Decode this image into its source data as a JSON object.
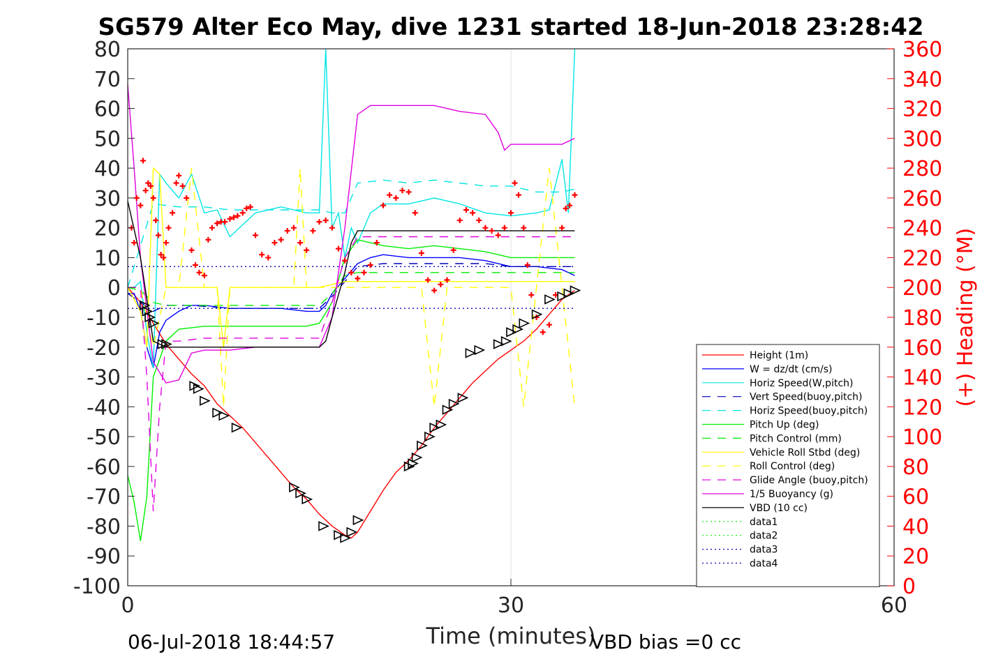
{
  "title": "SG579 Alter Eco May, dive 1231 started 18-Jun-2018 23:28:42",
  "footer": {
    "date": "06-Jul-2018 18:44:57",
    "xlabel": "Time (minutes)",
    "vbd_bias": "VBD bias =0 cc"
  },
  "chart_data": {
    "type": "line",
    "xlim": [
      0,
      60
    ],
    "ylim": [
      -100,
      80
    ],
    "y2lim": [
      0,
      360
    ],
    "ylabel_right": "(+) Heading (°M)",
    "xticks": [
      "0",
      "30",
      "60"
    ],
    "yticks": [
      "80",
      "70",
      "60",
      "50",
      "40",
      "30",
      "20",
      "10",
      "0",
      "-10",
      "-20",
      "-30",
      "-40",
      "-50",
      "-60",
      "-70",
      "-80",
      "-90",
      "-100"
    ],
    "y2ticks": [
      "360",
      "340",
      "320",
      "300",
      "280",
      "260",
      "240",
      "220",
      "200",
      "180",
      "160",
      "140",
      "120",
      "100",
      "80",
      "60",
      "40",
      "20",
      "0"
    ],
    "grid": "x only",
    "legend_position": "lower right",
    "series": [
      {
        "name": "Height (1m)",
        "color": "#ff0000",
        "dash": "solid",
        "x": [
          0,
          1,
          2,
          3,
          4,
          5,
          6,
          7,
          8,
          9,
          10,
          11,
          12,
          13,
          14,
          15,
          16,
          17,
          17.5,
          18,
          19,
          20,
          21,
          22,
          23,
          24,
          25,
          26,
          27,
          28,
          29,
          30,
          31,
          32,
          33,
          34,
          35
        ],
        "y": [
          0,
          -5,
          -12,
          -19,
          -24,
          -29,
          -33,
          -39,
          -43,
          -47,
          -52,
          -57,
          -62,
          -67,
          -71,
          -76,
          -80,
          -83,
          -84,
          -82,
          -75,
          -68,
          -62,
          -58,
          -53,
          -47,
          -42,
          -37,
          -32,
          -28,
          -24,
          -21,
          -18,
          -14,
          -9,
          -4,
          -1
        ]
      },
      {
        "name": "W = dz/dt (cm/s)",
        "color": "#0000ff",
        "dash": "solid",
        "x": [
          0,
          0.5,
          1,
          1.5,
          2,
          2.5,
          3,
          4,
          5,
          6,
          8,
          10,
          12,
          14,
          15,
          15.5,
          16,
          17,
          18,
          19,
          20,
          22,
          24,
          26,
          28,
          30,
          32,
          34,
          35
        ],
        "y": [
          -2,
          -2,
          -8,
          -20,
          -27,
          -15,
          -11,
          -8,
          -6,
          -6,
          -7,
          -7,
          -7,
          -8,
          -8,
          -6,
          -2,
          3,
          8,
          10,
          11,
          10,
          10,
          10,
          9,
          7,
          7,
          6,
          4
        ]
      },
      {
        "name": "Horiz Speed(W,pitch)",
        "color": "#00e5e5",
        "dash": "solid",
        "x": [
          0,
          0.5,
          1,
          1.5,
          2,
          2.5,
          3,
          4,
          5,
          6,
          7,
          8,
          10,
          12,
          14,
          15,
          15.5,
          16,
          16.5,
          17,
          17.5,
          18,
          19,
          20,
          22,
          24,
          26,
          28,
          30,
          32,
          33,
          34,
          34.5,
          35
        ],
        "y": [
          0,
          0,
          2,
          -15,
          -27,
          38,
          35,
          30,
          38,
          25,
          26,
          17,
          25,
          27,
          25,
          25,
          80,
          20,
          25,
          10,
          20,
          15,
          25,
          28,
          28,
          30,
          28,
          25,
          24,
          25,
          26,
          43,
          25,
          80
        ]
      },
      {
        "name": "Vert Speed(buoy,pitch)",
        "color": "#0000bb",
        "dash": "12,10",
        "x": [
          0,
          1,
          2,
          3,
          5,
          8,
          11,
          14,
          15,
          16,
          17,
          18,
          20,
          22,
          24,
          26,
          28,
          30,
          32,
          34,
          35
        ],
        "y": [
          -2,
          -5,
          -8,
          -6,
          -6,
          -7,
          -7,
          -7,
          -7,
          -3,
          2,
          7,
          8,
          8,
          8,
          8,
          8,
          7,
          7,
          7,
          7
        ]
      },
      {
        "name": "Horiz Speed(buoy,pitch)",
        "color": "#00e5e5",
        "dash": "12,10",
        "x": [
          0,
          2,
          4,
          6,
          8,
          10,
          12,
          14,
          15,
          16,
          17,
          18,
          20,
          22,
          24,
          26,
          28,
          30,
          32,
          34,
          35
        ],
        "y": [
          0,
          28,
          27,
          27,
          26,
          26,
          26,
          26,
          26,
          25,
          25,
          35,
          36,
          35,
          36,
          35,
          34,
          34,
          32,
          32,
          33
        ]
      },
      {
        "name": "Pitch Up (deg)",
        "color": "#00ee00",
        "dash": "solid",
        "x": [
          0,
          0.5,
          1,
          1.5,
          2,
          3,
          4,
          6,
          8,
          10,
          12,
          14,
          15,
          16,
          17,
          18,
          19,
          20,
          22,
          24,
          26,
          28,
          30,
          32,
          34,
          35
        ],
        "y": [
          -63,
          -72,
          -85,
          -70,
          -30,
          -18,
          -14,
          -13,
          -13,
          -13,
          -13,
          -13,
          -12,
          -5,
          10,
          16,
          15,
          14,
          13,
          14,
          13,
          12,
          10,
          10,
          10,
          10
        ]
      },
      {
        "name": "Pitch Control (mm)",
        "color": "#00ee00",
        "dash": "12,10",
        "x": [
          0,
          1,
          2,
          3,
          6,
          10,
          14,
          15,
          16,
          17,
          18,
          20,
          24,
          28,
          32,
          35
        ],
        "y": [
          0,
          -1,
          -5,
          -6,
          -6,
          -6,
          -6,
          -6,
          -2,
          4,
          5,
          5,
          5,
          5,
          5,
          5
        ]
      },
      {
        "name": "Vehicle Roll Stbd (deg)",
        "color": "#ffff00",
        "dash": "solid",
        "x": [
          0,
          1,
          1.5,
          2,
          2.5,
          3,
          4,
          5,
          6,
          7,
          7.5,
          8,
          9,
          10,
          12,
          14,
          15,
          16,
          17,
          18,
          20,
          22,
          24,
          25,
          26,
          28,
          30,
          32,
          33,
          34,
          35
        ],
        "y": [
          0,
          -8,
          -20,
          40,
          38,
          0,
          0,
          0,
          0,
          0,
          -20,
          0,
          0,
          0,
          0,
          0,
          0,
          1,
          2,
          2,
          2,
          2,
          2,
          2,
          2,
          2,
          2,
          2,
          2,
          2,
          2
        ]
      },
      {
        "name": "Roll Control (deg)",
        "color": "#ffff00",
        "dash": "12,10",
        "x": [
          0,
          1,
          2,
          3,
          4,
          5,
          6,
          7,
          7.5,
          8,
          9,
          10,
          13,
          13.5,
          14,
          15,
          16,
          18,
          20,
          22,
          23,
          24,
          25,
          26,
          28,
          30,
          31,
          32,
          33,
          34,
          35
        ],
        "y": [
          0,
          0,
          -20,
          0,
          0,
          40,
          0,
          0,
          -40,
          0,
          0,
          0,
          0,
          40,
          0,
          0,
          0,
          0,
          0,
          0,
          0,
          -40,
          0,
          0,
          0,
          0,
          -40,
          0,
          40,
          0,
          -40
        ]
      },
      {
        "name": "Glide Angle (buoy,pitch)",
        "color": "#e000e0",
        "dash": "12,10",
        "x": [
          0,
          1,
          1.5,
          2,
          2.5,
          3,
          4,
          6,
          8,
          10,
          12,
          14,
          15,
          16,
          17,
          18,
          20,
          22,
          24,
          26,
          28,
          30,
          32,
          34,
          35
        ],
        "y": [
          0,
          0,
          -30,
          -75,
          -40,
          -18,
          -18,
          -17,
          -17,
          -17,
          -17,
          -17,
          -17,
          -5,
          10,
          17,
          17,
          17,
          17,
          17,
          17,
          17,
          17,
          17,
          17
        ]
      },
      {
        "name": "1/5 Buoyancy (g)",
        "color": "#e000e0",
        "dash": "solid",
        "x": [
          0,
          0.5,
          1,
          2,
          3,
          4,
          5,
          6,
          8,
          10,
          12,
          14,
          15,
          16,
          17,
          18,
          19,
          20,
          22,
          24,
          25,
          26,
          28,
          29,
          29.5,
          30,
          32,
          34,
          35
        ],
        "y": [
          68,
          40,
          10,
          -25,
          -32,
          -31,
          -22,
          -21,
          -21,
          -20,
          -20,
          -20,
          -20,
          -10,
          20,
          58,
          61,
          61,
          61,
          61,
          60,
          59,
          58,
          52,
          46,
          48,
          48,
          48,
          50
        ]
      },
      {
        "name": "VBD (10 cc)",
        "color": "#000000",
        "dash": "solid",
        "x": [
          0,
          1,
          2,
          3,
          5,
          10,
          14,
          15,
          15.5,
          16,
          17,
          17.5,
          18,
          19,
          20,
          25,
          30,
          35
        ],
        "y": [
          29,
          10,
          -18,
          -20,
          -20,
          -20,
          -20,
          -20,
          -18,
          -10,
          5,
          15,
          19,
          19,
          19,
          19,
          19,
          19
        ]
      },
      {
        "name": "data1",
        "color": "#00ee00",
        "dash": "2,4",
        "x": [],
        "y": []
      },
      {
        "name": "data2",
        "color": "#00ee00",
        "dash": "2,4",
        "x": [],
        "y": []
      },
      {
        "name": "data3",
        "color": "#0000bb",
        "dash": "2,4",
        "x": [
          0,
          35
        ],
        "y": [
          7,
          7
        ]
      },
      {
        "name": "data4",
        "color": "#0000bb",
        "dash": "2,4",
        "x": [
          0,
          35
        ],
        "y": [
          -7,
          -7
        ]
      }
    ],
    "heading_points": {
      "color": "#ff0000",
      "x": [
        0.3,
        0.5,
        0.7,
        1,
        1.2,
        1.4,
        1.6,
        1.8,
        2,
        2.2,
        2.4,
        2.6,
        2.8,
        3,
        3.2,
        3.5,
        3.8,
        4,
        4.3,
        4.6,
        5,
        5.3,
        5.6,
        6,
        6.3,
        6.6,
        7,
        7.3,
        7.6,
        8,
        8.3,
        8.6,
        9,
        9.3,
        9.6,
        10,
        10.5,
        11,
        11.5,
        12,
        12.5,
        13,
        13.5,
        14,
        14.5,
        15,
        15.5,
        16,
        16.5,
        17,
        17.5,
        18,
        18.5,
        19,
        19.5,
        20,
        20.5,
        21,
        21.5,
        22,
        22.5,
        23,
        23.5,
        24,
        24.5,
        25,
        25.5,
        26,
        26.5,
        27,
        27.5,
        28,
        28.5,
        29,
        29.5,
        30,
        30.3,
        30.6,
        31,
        31.3,
        31.6,
        32,
        32.5,
        33,
        33.5,
        34,
        34.3,
        34.6,
        35
      ],
      "y": [
        240,
        230,
        260,
        255,
        285,
        265,
        270,
        268,
        260,
        245,
        235,
        222,
        220,
        230,
        240,
        250,
        270,
        275,
        268,
        260,
        225,
        215,
        210,
        208,
        232,
        240,
        243,
        244,
        244,
        246,
        247,
        248,
        250,
        253,
        254,
        235,
        222,
        220,
        230,
        232,
        238,
        240,
        230,
        225,
        238,
        244,
        245,
        240,
        226,
        218,
        210,
        206,
        210,
        215,
        230,
        255,
        262,
        260,
        265,
        264,
        250,
        223,
        205,
        198,
        202,
        205,
        225,
        245,
        252,
        250,
        245,
        240,
        238,
        235,
        240,
        250,
        270,
        262,
        240,
        215,
        195,
        180,
        170,
        175,
        195,
        240,
        253,
        255,
        262
      ]
    },
    "triangle_markers": {
      "x": [
        1.3,
        1.5,
        1.7,
        2,
        2.7,
        3,
        5.2,
        5.5,
        6,
        7,
        7.5,
        8.5,
        13,
        13.5,
        14,
        15.3,
        16.5,
        17,
        17.5,
        18,
        22,
        22.3,
        22.6,
        23,
        23.6,
        24,
        24.5,
        25,
        25.5,
        26.2,
        26.8,
        27.5,
        29,
        29.6,
        30,
        30.5,
        31,
        32,
        33,
        34,
        34.5,
        35
      ],
      "y": [
        -6,
        -8,
        -10,
        -12,
        -19,
        -19,
        -33,
        -34,
        -38,
        -42,
        -43,
        -47,
        -67,
        -69,
        -71,
        -80,
        -83,
        -84,
        -82,
        -78,
        -60,
        -59,
        -57,
        -53,
        -50,
        -47,
        -46,
        -41,
        -39,
        -37,
        -22,
        -21,
        -19,
        -18,
        -15,
        -14,
        -12,
        -9,
        -4,
        -3,
        -2,
        -1
      ]
    }
  }
}
